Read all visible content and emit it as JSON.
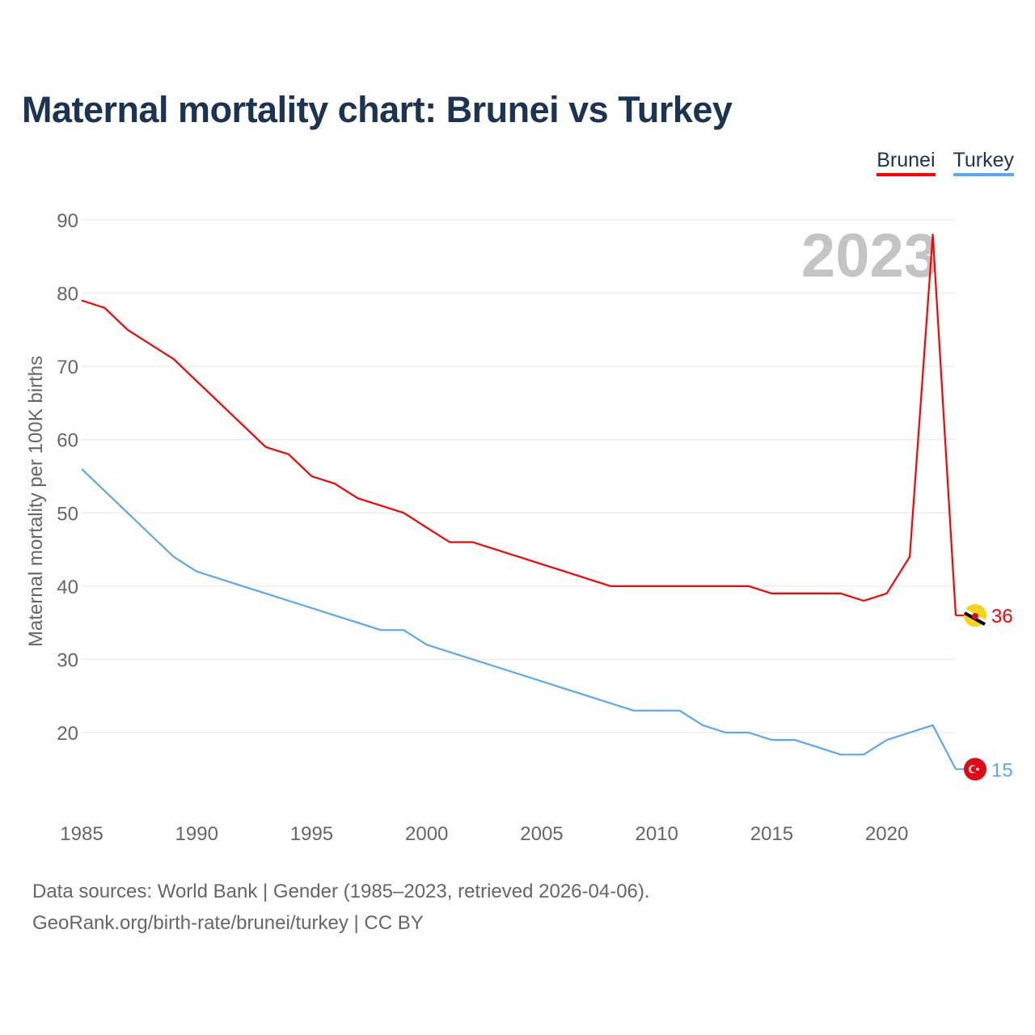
{
  "title": "Maternal mortality chart: Brunei vs Turkey",
  "footer": {
    "line1": "Data sources: World Bank | Gender (1985–2023, retrieved 2026-04-06).",
    "line2": "GeoRank.org/birth-rate/brunei/turkey | CC BY"
  },
  "chart_data": {
    "type": "line",
    "title": "Maternal mortality chart: Brunei vs Turkey",
    "xlabel": "",
    "ylabel": "Maternal mortality per 100K births",
    "watermark": "2023",
    "xlim": [
      1985,
      2023
    ],
    "ylim": [
      10,
      90
    ],
    "grid": true,
    "legend_position": "top-right",
    "x_ticks": [
      "1985",
      "1990",
      "1995",
      "2000",
      "2005",
      "2010",
      "2015",
      "2020"
    ],
    "y_ticks": [
      "20",
      "30",
      "40",
      "50",
      "60",
      "70",
      "80",
      "90"
    ],
    "x": [
      1985,
      1986,
      1987,
      1988,
      1989,
      1990,
      1991,
      1992,
      1993,
      1994,
      1995,
      1996,
      1997,
      1998,
      1999,
      2000,
      2001,
      2002,
      2003,
      2004,
      2005,
      2006,
      2007,
      2008,
      2009,
      2010,
      2011,
      2012,
      2013,
      2014,
      2015,
      2016,
      2017,
      2018,
      2019,
      2020,
      2021,
      2022,
      2023
    ],
    "series": [
      {
        "name": "Brunei",
        "color": "#ff0000",
        "end_label": "36",
        "flag": "brunei-flag",
        "values": [
          79,
          78,
          75,
          73,
          71,
          68,
          65,
          62,
          59,
          58,
          55,
          54,
          52,
          51,
          50,
          48,
          46,
          46,
          45,
          44,
          43,
          42,
          41,
          40,
          40,
          40,
          40,
          40,
          40,
          40,
          39,
          39,
          39,
          39,
          38,
          39,
          44,
          88,
          36
        ]
      },
      {
        "name": "Turkey",
        "color": "#5ca8ee",
        "end_label": "15",
        "flag": "turkey-flag",
        "values": [
          56,
          53,
          50,
          47,
          44,
          42,
          41,
          40,
          39,
          38,
          37,
          36,
          35,
          34,
          34,
          32,
          31,
          30,
          29,
          28,
          27,
          26,
          25,
          24,
          23,
          23,
          23,
          21,
          20,
          20,
          19,
          19,
          18,
          17,
          17,
          19,
          20,
          21,
          15
        ]
      }
    ]
  }
}
